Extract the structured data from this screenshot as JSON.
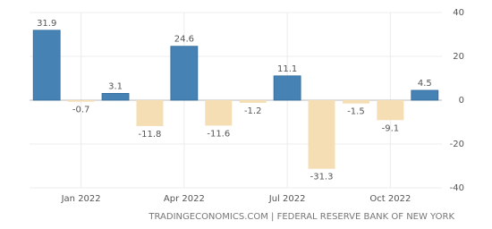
{
  "chart_data": {
    "type": "bar",
    "categories": [
      null,
      "Jan 2022",
      null,
      null,
      "Apr 2022",
      null,
      null,
      "Jul 2022",
      null,
      null,
      "Oct 2022",
      null
    ],
    "values": [
      31.9,
      -0.7,
      3.1,
      -11.8,
      24.6,
      -11.6,
      -1.2,
      11.1,
      -31.3,
      -1.5,
      -9.1,
      4.5
    ],
    "positive_color": "#4682b4",
    "negative_color": "#f5deb3",
    "ylim": [
      -40,
      40
    ],
    "yticks": [
      40,
      20,
      0,
      -20,
      -40
    ],
    "grid": true,
    "source": "TRADINGECONOMICS.COM | FEDERAL RESERVE BANK OF NEW YORK"
  }
}
